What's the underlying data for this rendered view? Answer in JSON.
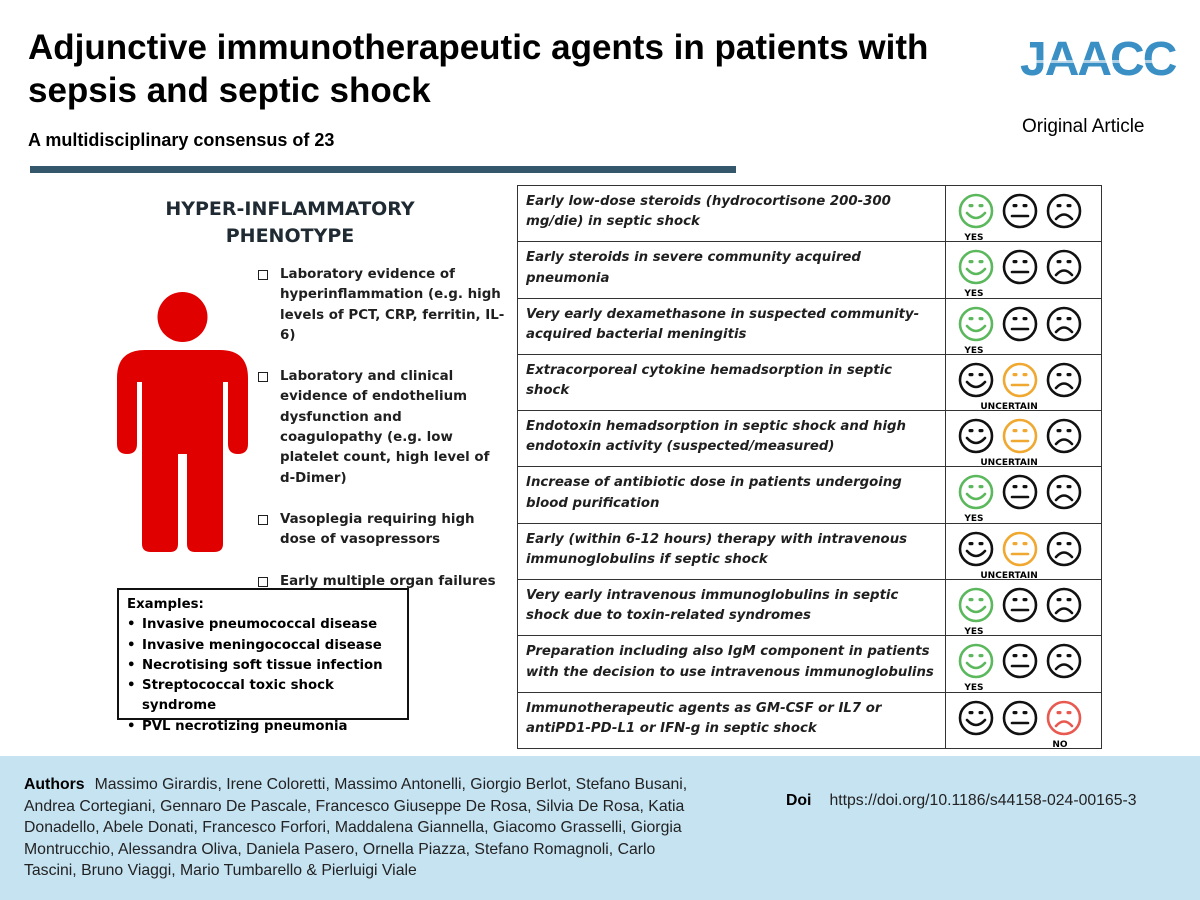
{
  "header": {
    "title": "Adjunctive immunotherapeutic agents in patients with sepsis and septic shock",
    "subtitle": "A multidisciplinary consensus of 23",
    "journal_logo": "JAACC",
    "article_type": "Original Article",
    "rule_color": "#34576c"
  },
  "phenotype": {
    "title": "HYPER-INFLAMMATORY PHENOTYPE",
    "figure_color": "#e10000",
    "figure_icon": "person-icon",
    "criteria": [
      "Laboratory evidence of hyperinflammation (e.g. high levels of PCT, CRP, ferritin, IL-6)",
      "Laboratory and clinical evidence of endothelium dysfunction and coagulopathy (e.g. low platelet count, high level of d-Dimer)",
      "Vasoplegia requiring high dose of vasopressors",
      "Early multiple organ failures"
    ],
    "examples_title": "Examples:",
    "examples": [
      "Invasive pneumococcal disease",
      "Invasive meningococcal disease",
      "Necrotising soft tissue infection",
      "Streptococcal toxic shock syndrome",
      "PVL necrotizing pneumonia"
    ]
  },
  "recommendations": {
    "face_icons": [
      "happy-face-icon",
      "neutral-face-icon",
      "sad-face-icon"
    ],
    "colors": {
      "yes": "#5cb85c",
      "uncertain": "#f0a830",
      "no": "#e8594f",
      "default": "#111111"
    },
    "rows": [
      {
        "text": "Early low-dose steroids (hydrocortisone 200-300 mg/die) in septic shock",
        "verdict": "yes",
        "label": "YES"
      },
      {
        "text": "Early steroids in severe community acquired pneumonia",
        "verdict": "yes",
        "label": "YES"
      },
      {
        "text": "Very early dexamethasone in suspected community-acquired bacterial meningitis",
        "verdict": "yes",
        "label": "YES"
      },
      {
        "text": "Extracorporeal cytokine hemadsorption in septic shock",
        "verdict": "uncertain",
        "label": "UNCERTAIN"
      },
      {
        "text": "Endotoxin hemadsorption in septic shock and high endotoxin activity (suspected/measured)",
        "verdict": "uncertain",
        "label": "UNCERTAIN"
      },
      {
        "text": "Increase of antibiotic dose in patients undergoing blood purification",
        "verdict": "yes",
        "label": "YES"
      },
      {
        "text": "Early (within 6-12 hours) therapy with intravenous immunoglobulins if septic shock",
        "verdict": "uncertain",
        "label": "UNCERTAIN"
      },
      {
        "text": "Very early intravenous immunoglobulins in septic shock due to toxin-related syndromes",
        "verdict": "yes",
        "label": "YES"
      },
      {
        "text": "Preparation including also IgM component in patients with the decision to use intravenous immunoglobulins",
        "verdict": "yes",
        "label": "YES"
      },
      {
        "text": "Immunotherapeutic agents as GM-CSF or IL7 or antiPD1-PD-L1 or IFN-g in septic shock",
        "verdict": "no",
        "label": "NO"
      }
    ]
  },
  "footer": {
    "authors_label": "Authors",
    "authors": "Massimo Girardis, Irene Coloretti, Massimo Antonelli, Giorgio Berlot, Stefano Busani, Andrea Cortegiani, Gennaro De Pascale, Francesco Giuseppe De Rosa, Silvia De Rosa, Katia Donadello, Abele Donati, Francesco Forfori, Maddalena Giannella, Giacomo Grasselli, Giorgia Montrucchio, Alessandra Oliva, Daniela Pasero, Ornella Piazza, Stefano Romagnoli, Carlo Tascini, Bruno Viaggi, Mario Tumbarello & Pierluigi Viale",
    "doi_label": "Doi",
    "doi": "https://doi.org/10.1186/s44158-024-00165-3",
    "background": "#c6e3f2"
  }
}
